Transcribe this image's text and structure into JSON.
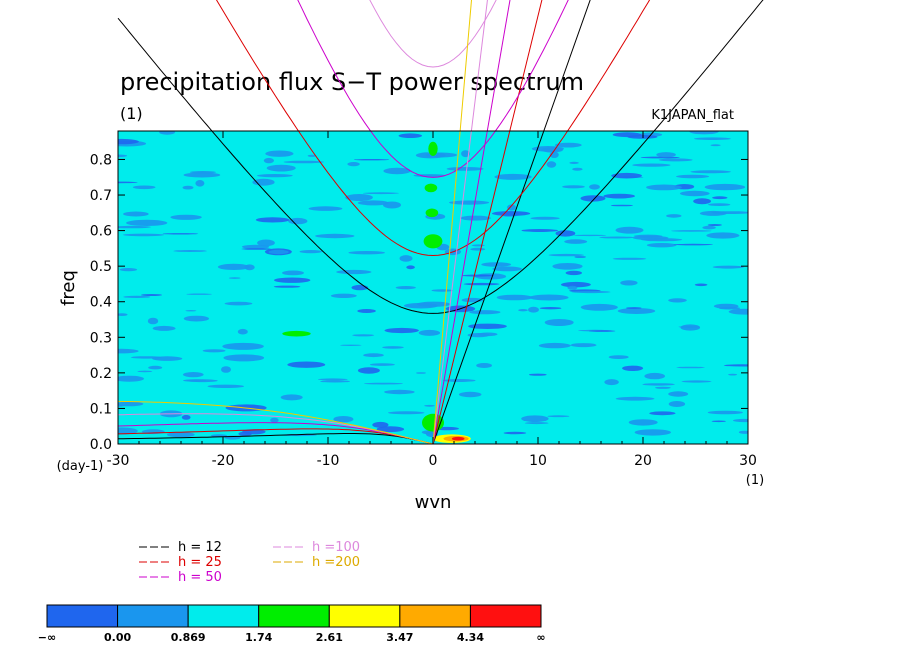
{
  "chart_data": {
    "type": "heatmap",
    "title": "precipitation flux S−T power spectrum",
    "subtitle_units": "(1)",
    "run_label": "K1JAPAN_flat",
    "xlabel": "wvn",
    "ylabel": "freq",
    "x_units": "(1)",
    "y_units": "(day-1)",
    "xlim": [
      -30,
      30
    ],
    "ylim": [
      0,
      0.88
    ],
    "x_ticks": [
      -30,
      -20,
      -10,
      0,
      10,
      20,
      30
    ],
    "y_ticks": [
      0.0,
      0.1,
      0.2,
      0.3,
      0.4,
      0.5,
      0.6,
      0.7,
      0.8
    ],
    "dispersion_curves": [
      {
        "name": "h = 12",
        "h": 12,
        "color": "#000000",
        "legend_color": "#000000"
      },
      {
        "name": "h = 25",
        "h": 25,
        "color": "#dd0000",
        "legend_color": "#dd0000"
      },
      {
        "name": "h = 50",
        "h": 50,
        "color": "#cc00cc",
        "legend_color": "#cc00cc"
      },
      {
        "name": "h =100",
        "h": 100,
        "color": "#dd88dd",
        "legend_color": "#dd88dd"
      },
      {
        "name": "h =200",
        "h": 200,
        "color": "#eecc00",
        "legend_color": "#ddaa00"
      }
    ],
    "colorbar": {
      "labels": [
        "−∞",
        "0.00",
        "0.869",
        "1.74",
        "2.61",
        "3.47",
        "4.34",
        "∞"
      ],
      "colors": [
        "#1f66ee",
        "#1a96ee",
        "#00ecec",
        "#00ee00",
        "#ffff00",
        "#ffaa00",
        "#ff1010"
      ]
    }
  }
}
